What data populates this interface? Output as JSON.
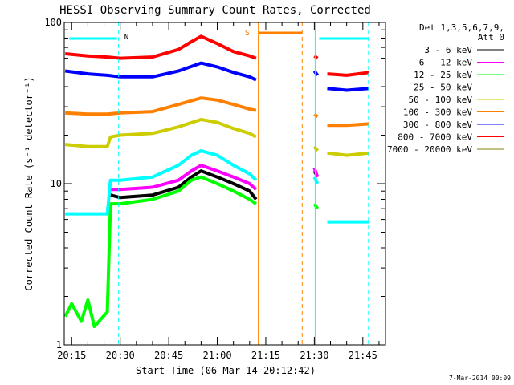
{
  "chart_data": {
    "type": "line",
    "title": "HESSI Observing Summary Count Rates, Corrected",
    "xlabel": "Start Time (06-Mar-14 20:12:42)",
    "ylabel": "Corrected Count Rate (s⁻¹ detector⁻¹)",
    "yscale": "log",
    "ylim": [
      1,
      100
    ],
    "xlim": [
      "20:12:42",
      "21:52:00"
    ],
    "x_ticks": [
      "20:15",
      "20:30",
      "20:45",
      "21:00",
      "21:15",
      "21:30",
      "21:45"
    ],
    "y_ticks": [
      "1",
      "10",
      "100"
    ],
    "legend": {
      "position": "top-right",
      "header": [
        "Det 1,3,5,6,7,9,",
        "Att 0"
      ]
    },
    "timestamp": "7-Mar-2014 00:09",
    "annotations": [
      {
        "label": "N",
        "color": "#00ffff"
      },
      {
        "label": "S",
        "color": "#ff8000"
      }
    ],
    "series": [
      {
        "name": "3 - 6 keV",
        "color": "#000000",
        "x": [
          "20:13",
          "20:26",
          "20:27",
          "20:30",
          "20:40",
          "20:48",
          "20:52",
          "20:55",
          "21:00",
          "21:05",
          "21:10",
          "21:12",
          "21:29",
          "21:30",
          "21:31",
          "21:32"
        ],
        "y": [
          null,
          null,
          8.5,
          8.2,
          8.5,
          9.5,
          11,
          12,
          11,
          10,
          9,
          8,
          null,
          12,
          11,
          null
        ]
      },
      {
        "name": "6 - 12 keV",
        "color": "#ff00ff",
        "x": [
          "20:13",
          "20:26",
          "20:27",
          "20:30",
          "20:40",
          "20:48",
          "20:52",
          "20:55",
          "21:00",
          "21:05",
          "21:10",
          "21:12",
          "21:29",
          "21:30",
          "21:31",
          "21:32"
        ],
        "y": [
          null,
          null,
          9.2,
          9.2,
          9.5,
          10.5,
          12,
          13,
          12,
          11,
          10,
          9.2,
          null,
          12.5,
          11,
          null
        ]
      },
      {
        "name": "12 - 25 keV",
        "color": "#00ff00",
        "x": [
          "20:13",
          "20:15",
          "20:18",
          "20:20",
          "20:22",
          "20:26",
          "20:27",
          "20:30",
          "20:40",
          "20:48",
          "20:52",
          "20:55",
          "21:00",
          "21:05",
          "21:10",
          "21:12",
          "21:29",
          "21:30",
          "21:31",
          "21:32"
        ],
        "y": [
          1.5,
          1.8,
          1.4,
          1.9,
          1.3,
          1.6,
          7.5,
          7.5,
          8,
          9,
          10.5,
          11,
          10,
          9,
          8,
          7.5,
          null,
          7.5,
          7,
          null
        ]
      },
      {
        "name": "25 - 50 keV",
        "color": "#00ffff",
        "x": [
          "20:13",
          "20:20",
          "20:26",
          "20:27",
          "20:30",
          "20:40",
          "20:48",
          "20:52",
          "20:55",
          "21:00",
          "21:05",
          "21:10",
          "21:12",
          "21:29",
          "21:30",
          "21:31",
          "21:32",
          "21:34",
          "21:40",
          "21:47"
        ],
        "y": [
          6.5,
          6.5,
          6.5,
          10.5,
          10.5,
          11,
          13,
          15,
          16,
          15,
          13,
          11.5,
          10.5,
          null,
          11,
          10,
          null,
          5.8,
          5.8,
          5.8
        ]
      },
      {
        "name": "50 - 100 keV",
        "color": "#cccc00",
        "x": [
          "20:13",
          "20:20",
          "20:26",
          "20:27",
          "20:30",
          "20:40",
          "20:48",
          "20:55",
          "21:00",
          "21:05",
          "21:10",
          "21:12",
          "21:29",
          "21:30",
          "21:31",
          "21:32",
          "21:34",
          "21:40",
          "21:47"
        ],
        "y": [
          17.5,
          17,
          17,
          19.5,
          20,
          20.5,
          22.5,
          25,
          24,
          22,
          20.5,
          19.5,
          null,
          17,
          16,
          null,
          15.5,
          15,
          15.5
        ]
      },
      {
        "name": "100 - 300 keV",
        "color": "#ff8000",
        "x": [
          "20:13",
          "20:20",
          "20:26",
          "20:30",
          "20:40",
          "20:48",
          "20:55",
          "21:00",
          "21:05",
          "21:10",
          "21:12",
          "21:29",
          "21:30",
          "21:31",
          "21:32",
          "21:34",
          "21:40",
          "21:47"
        ],
        "y": [
          27.5,
          27,
          27,
          27.5,
          28,
          31,
          34,
          33,
          31,
          29,
          28.5,
          null,
          27,
          26,
          null,
          23,
          23,
          23.5
        ]
      },
      {
        "name": "300 - 800 keV",
        "color": "#0000ff",
        "x": [
          "20:13",
          "20:20",
          "20:26",
          "20:30",
          "20:40",
          "20:48",
          "20:55",
          "21:00",
          "21:05",
          "21:10",
          "21:12",
          "21:29",
          "21:30",
          "21:31",
          "21:32",
          "21:34",
          "21:40",
          "21:47"
        ],
        "y": [
          50,
          48,
          47,
          46,
          46,
          50,
          56,
          53,
          49,
          46,
          44,
          null,
          50,
          47,
          null,
          39,
          38,
          39
        ]
      },
      {
        "name": "800 - 7000 keV",
        "color": "#ff0000",
        "x": [
          "20:13",
          "20:20",
          "20:26",
          "20:30",
          "20:40",
          "20:48",
          "20:52",
          "20:55",
          "21:00",
          "21:05",
          "21:10",
          "21:12",
          "21:29",
          "21:30",
          "21:31",
          "21:32",
          "21:34",
          "21:40",
          "21:47"
        ],
        "y": [
          64,
          62,
          61,
          60,
          61,
          68,
          76,
          82,
          74,
          66,
          62,
          60,
          null,
          62,
          60,
          null,
          48,
          47,
          49
        ]
      },
      {
        "name": "7000 - 20000 keV",
        "color": "#808000",
        "x": [
          "20:13"
        ],
        "y": [
          null
        ]
      }
    ]
  }
}
